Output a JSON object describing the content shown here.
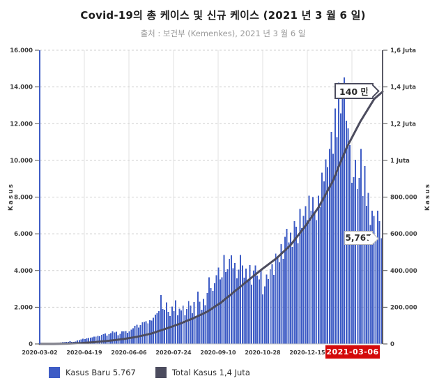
{
  "header": {
    "title": "Covid-19의 총 케이스 및 신규 케이스 (2021 년 3 월 6 일)",
    "subtitle": "출처 : 보건부 (Kemenkes), 2021 년 3 월 6 일"
  },
  "colors": {
    "bar": "#3e5cc5",
    "line": "#4c4c5e",
    "axis_left": "#3e5cc5",
    "axis_right": "#5a5a66",
    "grid_dashed": "#cfcfcf",
    "grid_vertical": "#e2e2e2",
    "baseline": "#c0c0c0",
    "tick": "#4a4a4a",
    "tick_text": "#3d3d3d",
    "highlight_bg": "#d40a0a",
    "highlight_text": "#ffffff"
  },
  "chart_data": {
    "type": "bar+line",
    "title": "Covid-19의 총 케이스 및 신규 케이스 (2021 년 3 월 6 일)",
    "source": "출처 : 보건부 (Kemenkes), 2021 년 3 월 6 일",
    "start_date": "2020-03-02",
    "end_date": "2021-03-06",
    "days_total": 370,
    "left_axis": {
      "label": "Kasus",
      "min": 0,
      "max": 16000,
      "tick_step": 2000,
      "tick_labels": [
        "0",
        "2.000",
        "4.000",
        "6.000",
        "8.000",
        "10.000",
        "12.000",
        "14.000",
        "16.000"
      ]
    },
    "right_axis": {
      "label": "Kasus",
      "min": 0,
      "max": 1600000,
      "tick_step": 200000,
      "tick_labels": [
        "0",
        "200.000",
        "400.000",
        "600.000",
        "800.000",
        "1 Juta",
        "1,2 Juta",
        "1,4 Juta",
        "1,6 Juta"
      ]
    },
    "x_axis": {
      "ticks": [
        {
          "label": "2020-03-02",
          "day": 0
        },
        {
          "label": "2020-04-19",
          "day": 48
        },
        {
          "label": "2020-06-06",
          "day": 96
        },
        {
          "label": "2020-07-24",
          "day": 144
        },
        {
          "label": "2020-09-10",
          "day": 192
        },
        {
          "label": "2020-10-28",
          "day": 240
        },
        {
          "label": "2020-12-15",
          "day": 288
        },
        {
          "label": "",
          "day": 336
        }
      ],
      "highlight_label": "2021-03-06"
    },
    "bars": {
      "name": "Kasus Baru",
      "latest_value": 5767,
      "sample_interval_days": 2,
      "values": [
        2,
        1,
        2,
        2,
        4,
        6,
        9,
        17,
        30,
        48,
        65,
        81,
        103,
        96,
        107,
        114,
        153,
        109,
        120,
        129,
        182,
        218,
        247,
        283,
        275,
        297,
        327,
        337,
        367,
        396,
        395,
        436,
        415,
        489,
        533,
        568,
        457,
        526,
        584,
        678,
        620,
        657,
        479,
        557,
        693,
        678,
        700,
        609,
        678,
        779,
        859,
        979,
        1043,
        896,
        1031,
        1178,
        1198,
        1240,
        1113,
        1293,
        1282,
        1434,
        1591,
        1671,
        1782,
        2657,
        1904,
        1868,
        2255,
        1753,
        1525,
        2040,
        1792,
        2381,
        1560,
        1922,
        1815,
        2098,
        1560,
        1893,
        2345,
        2098,
        1673,
        2277,
        1519,
        2858,
        2306,
        1858,
        2450,
        2100,
        2775,
        3622,
        3046,
        2880,
        3307,
        3737,
        4168,
        3509,
        3635,
        4850,
        3906,
        4071,
        4634,
        4823,
        4125,
        4411,
        3567,
        4056,
        4850,
        4267,
        3602,
        4105,
        3520,
        4301,
        3222,
        3985,
        4267,
        3732,
        3520,
        4004,
        2696,
        3143,
        3779,
        3535,
        4065,
        4360,
        3770,
        4917,
        4792,
        4442,
        5444,
        4634,
        5828,
        6267,
        5533,
        6058,
        5292,
        6689,
        6388,
        5489,
        7354,
        6310,
        6971,
        7514,
        6740,
        8074,
        7259,
        8002,
        7203,
        6740,
        8072,
        7445,
        9321,
        8854,
        10047,
        9640,
        10617,
        11557,
        10365,
        12818,
        11278,
        14224,
        12568,
        13695,
        14518,
        12156,
        11749,
        10827,
        8776,
        9086,
        10029,
        8435,
        9039,
        10614,
        8054,
        9687,
        7533,
        8232,
        6487,
        7264,
        6971,
        5712,
        7264,
        6680,
        5767
      ]
    },
    "line": {
      "name": "Total Kasus",
      "latest_value_label": "1,4 Juta",
      "points": [
        [
          0,
          2
        ],
        [
          15,
          117
        ],
        [
          30,
          1528
        ],
        [
          45,
          4839
        ],
        [
          60,
          10118
        ],
        [
          75,
          17514
        ],
        [
          90,
          26473
        ],
        [
          105,
          39294
        ],
        [
          120,
          56385
        ],
        [
          135,
          81668
        ],
        [
          150,
          108376
        ],
        [
          165,
          139549
        ],
        [
          180,
          174796
        ],
        [
          195,
          225030
        ],
        [
          210,
          287008
        ],
        [
          225,
          349160
        ],
        [
          240,
          410088
        ],
        [
          255,
          467113
        ],
        [
          270,
          538883
        ],
        [
          285,
          636154
        ],
        [
          300,
          743198
        ],
        [
          315,
          882418
        ],
        [
          330,
          1066313
        ],
        [
          345,
          1210703
        ],
        [
          360,
          1334634
        ],
        [
          369,
          1373836
        ]
      ]
    },
    "annotations": [
      {
        "text": "140 만",
        "series": "Total Kasus"
      },
      {
        "text": "5,767",
        "series": "Kasus Baru"
      }
    ]
  },
  "legend": [
    {
      "label": "Kasus Baru 5.767"
    },
    {
      "label": "Total Kasus 1,4 Juta"
    }
  ]
}
